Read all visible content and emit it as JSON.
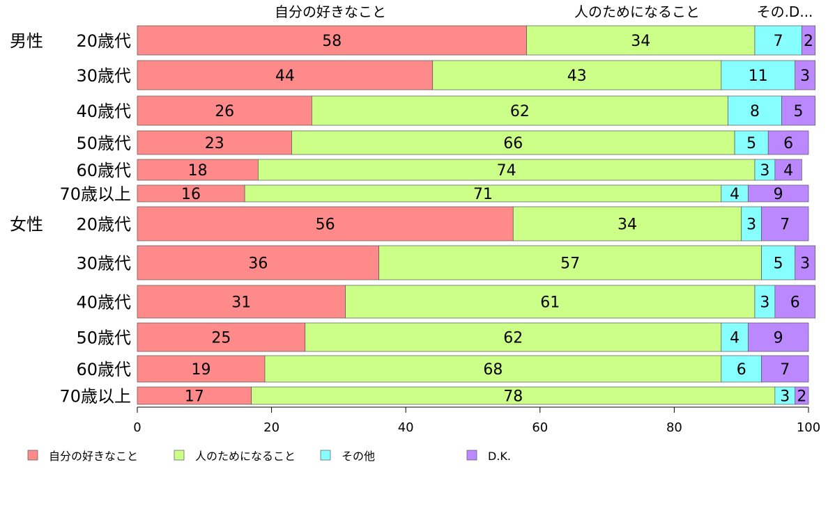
{
  "chart_data": {
    "type": "bar",
    "orientation": "horizontal",
    "stacked": true,
    "xlim": [
      0,
      100
    ],
    "xticks": [
      0,
      20,
      40,
      60,
      80,
      100
    ],
    "grid": false,
    "legend_position": "bottom-left",
    "top_labels": [
      "自分の好きなこと",
      "人のためになること",
      "その.D..."
    ],
    "groups": [
      {
        "label": "男性",
        "categories": [
          "20歳代",
          "30歳代",
          "40歳代",
          "50歳代",
          "60歳代",
          "70歳以上"
        ]
      },
      {
        "label": "女性",
        "categories": [
          "20歳代",
          "30歳代",
          "40歳代",
          "50歳代",
          "60歳代",
          "70歳以上"
        ]
      }
    ],
    "series": [
      {
        "name": "自分の好きなこと",
        "color": "#ff8a8a",
        "values": [
          58,
          44,
          26,
          23,
          18,
          16,
          56,
          36,
          31,
          25,
          19,
          17
        ]
      },
      {
        "name": "人のためになること",
        "color": "#ccff88",
        "values": [
          34,
          43,
          62,
          66,
          74,
          71,
          34,
          57,
          61,
          62,
          68,
          78
        ]
      },
      {
        "name": "その他",
        "color": "#88ffff",
        "values": [
          7,
          11,
          8,
          5,
          3,
          4,
          3,
          5,
          3,
          4,
          6,
          3
        ]
      },
      {
        "name": "D.K.",
        "color": "#bb88ff",
        "values": [
          2,
          3,
          5,
          6,
          4,
          9,
          7,
          3,
          6,
          9,
          7,
          2
        ]
      }
    ]
  }
}
